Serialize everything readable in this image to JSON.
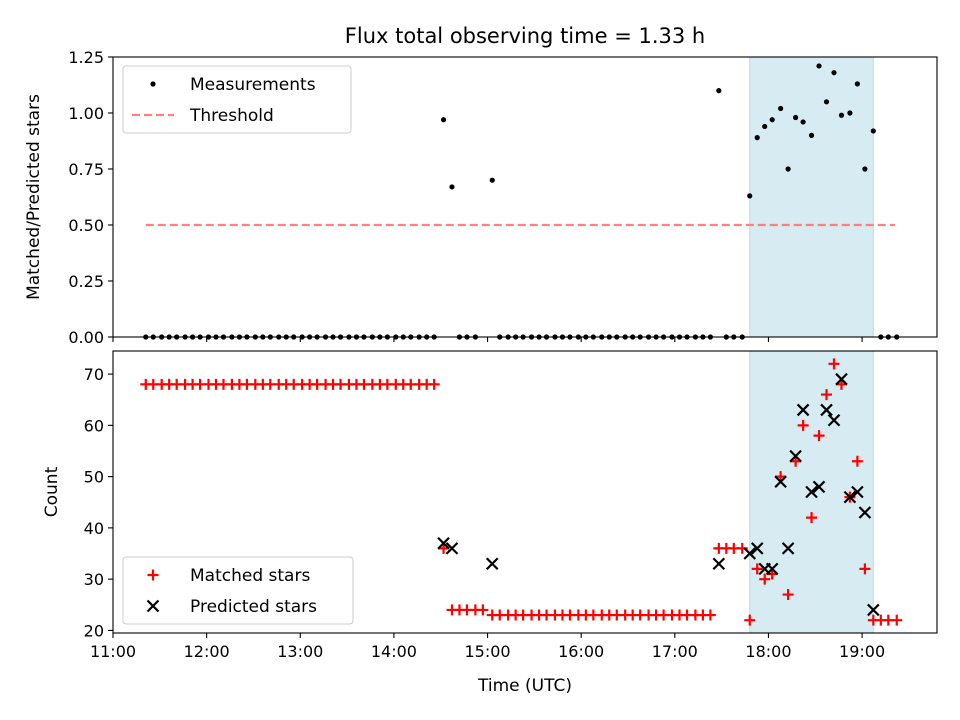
{
  "figure": {
    "title": "Flux total observing time = 1.33 h"
  },
  "chart_data": [
    {
      "type": "scatter",
      "name": "ratio-panel",
      "ylabel": "Matched/Predicted stars",
      "xlabel": "",
      "xlim": [
        11.0,
        19.8
      ],
      "ylim": [
        0.0,
        1.25
      ],
      "x_ticks": [
        11,
        12,
        13,
        14,
        15,
        16,
        17,
        18,
        19
      ],
      "x_tick_labels": [
        "",
        "",
        "",
        "",
        "",
        "",
        "",
        "",
        ""
      ],
      "y_ticks": [
        0.0,
        0.25,
        0.5,
        0.75,
        1.0,
        1.25
      ],
      "y_tick_labels": [
        "0.00",
        "0.25",
        "0.50",
        "0.75",
        "1.00",
        "1.25"
      ],
      "shaded_span": [
        17.8,
        19.12
      ],
      "shade_color": "#add8e6",
      "legend": {
        "position": "upper-left",
        "entries": [
          {
            "label": "Measurements",
            "marker": "dot",
            "color": "#000000"
          },
          {
            "label": "Threshold",
            "marker": "dashed-line",
            "color": "#ff7f7f"
          }
        ]
      },
      "threshold": {
        "value": 0.5,
        "x_range": [
          11.35,
          19.35
        ],
        "color": "#ff7f7f"
      },
      "series": [
        {
          "name": "Measurements",
          "color": "#000000",
          "points": [
            [
              11.35,
              0
            ],
            [
              11.43,
              0
            ],
            [
              11.52,
              0
            ],
            [
              11.6,
              0
            ],
            [
              11.68,
              0
            ],
            [
              11.77,
              0
            ],
            [
              11.85,
              0
            ],
            [
              11.93,
              0
            ],
            [
              12.02,
              0
            ],
            [
              12.1,
              0
            ],
            [
              12.18,
              0
            ],
            [
              12.27,
              0
            ],
            [
              12.35,
              0
            ],
            [
              12.43,
              0
            ],
            [
              12.52,
              0
            ],
            [
              12.6,
              0
            ],
            [
              12.68,
              0
            ],
            [
              12.77,
              0
            ],
            [
              12.85,
              0
            ],
            [
              12.93,
              0
            ],
            [
              13.02,
              0
            ],
            [
              13.1,
              0
            ],
            [
              13.18,
              0
            ],
            [
              13.27,
              0
            ],
            [
              13.35,
              0
            ],
            [
              13.43,
              0
            ],
            [
              13.52,
              0
            ],
            [
              13.6,
              0
            ],
            [
              13.68,
              0
            ],
            [
              13.77,
              0
            ],
            [
              13.85,
              0
            ],
            [
              13.93,
              0
            ],
            [
              14.02,
              0
            ],
            [
              14.1,
              0
            ],
            [
              14.18,
              0
            ],
            [
              14.27,
              0
            ],
            [
              14.35,
              0
            ],
            [
              14.43,
              0
            ],
            [
              14.53,
              0.97
            ],
            [
              14.62,
              0.67
            ],
            [
              14.7,
              0
            ],
            [
              14.78,
              0
            ],
            [
              14.87,
              0
            ],
            [
              15.05,
              0.7
            ],
            [
              15.13,
              0
            ],
            [
              15.22,
              0
            ],
            [
              15.3,
              0
            ],
            [
              15.38,
              0
            ],
            [
              15.47,
              0
            ],
            [
              15.55,
              0
            ],
            [
              15.63,
              0
            ],
            [
              15.72,
              0
            ],
            [
              15.8,
              0
            ],
            [
              15.88,
              0
            ],
            [
              15.97,
              0
            ],
            [
              16.05,
              0
            ],
            [
              16.13,
              0
            ],
            [
              16.22,
              0
            ],
            [
              16.3,
              0
            ],
            [
              16.38,
              0
            ],
            [
              16.47,
              0
            ],
            [
              16.55,
              0
            ],
            [
              16.63,
              0
            ],
            [
              16.72,
              0
            ],
            [
              16.8,
              0
            ],
            [
              16.88,
              0
            ],
            [
              16.97,
              0
            ],
            [
              17.05,
              0
            ],
            [
              17.13,
              0
            ],
            [
              17.22,
              0
            ],
            [
              17.3,
              0
            ],
            [
              17.38,
              0
            ],
            [
              17.47,
              1.1
            ],
            [
              17.55,
              0
            ],
            [
              17.63,
              0
            ],
            [
              17.72,
              0
            ],
            [
              17.8,
              0.63
            ],
            [
              17.88,
              0.89
            ],
            [
              17.96,
              0.94
            ],
            [
              18.04,
              0.97
            ],
            [
              18.13,
              1.02
            ],
            [
              18.21,
              0.75
            ],
            [
              18.29,
              0.98
            ],
            [
              18.37,
              0.96
            ],
            [
              18.46,
              0.9
            ],
            [
              18.54,
              1.21
            ],
            [
              18.62,
              1.05
            ],
            [
              18.7,
              1.18
            ],
            [
              18.78,
              0.99
            ],
            [
              18.87,
              1.0
            ],
            [
              18.95,
              1.13
            ],
            [
              19.03,
              0.75
            ],
            [
              19.12,
              0.92
            ],
            [
              19.2,
              0
            ],
            [
              19.28,
              0
            ],
            [
              19.37,
              0
            ]
          ]
        }
      ]
    },
    {
      "type": "scatter",
      "name": "count-panel",
      "ylabel": "Count",
      "xlabel": "Time (UTC)",
      "xlim": [
        11.0,
        19.8
      ],
      "ylim": [
        19.5,
        74.5
      ],
      "x_ticks": [
        11,
        12,
        13,
        14,
        15,
        16,
        17,
        18,
        19
      ],
      "x_tick_labels": [
        "11:00",
        "12:00",
        "13:00",
        "14:00",
        "15:00",
        "16:00",
        "17:00",
        "18:00",
        "19:00"
      ],
      "y_ticks": [
        20,
        30,
        40,
        50,
        60,
        70
      ],
      "y_tick_labels": [
        "20",
        "30",
        "40",
        "50",
        "60",
        "70"
      ],
      "shaded_span": [
        17.8,
        19.12
      ],
      "shade_color": "#add8e6",
      "legend": {
        "position": "lower-left",
        "entries": [
          {
            "label": "Matched stars",
            "marker": "plus",
            "color": "#ff0000"
          },
          {
            "label": "Predicted stars",
            "marker": "x",
            "color": "#000000"
          }
        ]
      },
      "series": [
        {
          "name": "Matched stars",
          "marker": "plus",
          "color": "#ff0000",
          "points": [
            [
              11.35,
              68
            ],
            [
              11.43,
              68
            ],
            [
              11.52,
              68
            ],
            [
              11.6,
              68
            ],
            [
              11.68,
              68
            ],
            [
              11.77,
              68
            ],
            [
              11.85,
              68
            ],
            [
              11.93,
              68
            ],
            [
              12.02,
              68
            ],
            [
              12.1,
              68
            ],
            [
              12.18,
              68
            ],
            [
              12.27,
              68
            ],
            [
              12.35,
              68
            ],
            [
              12.43,
              68
            ],
            [
              12.52,
              68
            ],
            [
              12.6,
              68
            ],
            [
              12.68,
              68
            ],
            [
              12.77,
              68
            ],
            [
              12.85,
              68
            ],
            [
              12.93,
              68
            ],
            [
              13.02,
              68
            ],
            [
              13.1,
              68
            ],
            [
              13.18,
              68
            ],
            [
              13.27,
              68
            ],
            [
              13.35,
              68
            ],
            [
              13.43,
              68
            ],
            [
              13.52,
              68
            ],
            [
              13.6,
              68
            ],
            [
              13.68,
              68
            ],
            [
              13.77,
              68
            ],
            [
              13.85,
              68
            ],
            [
              13.93,
              68
            ],
            [
              14.02,
              68
            ],
            [
              14.1,
              68
            ],
            [
              14.18,
              68
            ],
            [
              14.27,
              68
            ],
            [
              14.35,
              68
            ],
            [
              14.43,
              68
            ],
            [
              14.53,
              36
            ],
            [
              14.62,
              24
            ],
            [
              14.7,
              24
            ],
            [
              14.78,
              24
            ],
            [
              14.87,
              24
            ],
            [
              14.95,
              24
            ],
            [
              15.05,
              23
            ],
            [
              15.13,
              23
            ],
            [
              15.22,
              23
            ],
            [
              15.3,
              23
            ],
            [
              15.38,
              23
            ],
            [
              15.47,
              23
            ],
            [
              15.55,
              23
            ],
            [
              15.63,
              23
            ],
            [
              15.72,
              23
            ],
            [
              15.8,
              23
            ],
            [
              15.88,
              23
            ],
            [
              15.97,
              23
            ],
            [
              16.05,
              23
            ],
            [
              16.13,
              23
            ],
            [
              16.22,
              23
            ],
            [
              16.3,
              23
            ],
            [
              16.38,
              23
            ],
            [
              16.47,
              23
            ],
            [
              16.55,
              23
            ],
            [
              16.63,
              23
            ],
            [
              16.72,
              23
            ],
            [
              16.8,
              23
            ],
            [
              16.88,
              23
            ],
            [
              16.97,
              23
            ],
            [
              17.05,
              23
            ],
            [
              17.13,
              23
            ],
            [
              17.22,
              23
            ],
            [
              17.3,
              23
            ],
            [
              17.38,
              23
            ],
            [
              17.47,
              36
            ],
            [
              17.55,
              36
            ],
            [
              17.63,
              36
            ],
            [
              17.72,
              36
            ],
            [
              17.8,
              22
            ],
            [
              17.88,
              32
            ],
            [
              17.96,
              30
            ],
            [
              18.04,
              31
            ],
            [
              18.13,
              50
            ],
            [
              18.21,
              27
            ],
            [
              18.29,
              53
            ],
            [
              18.37,
              60
            ],
            [
              18.46,
              42
            ],
            [
              18.54,
              58
            ],
            [
              18.62,
              66
            ],
            [
              18.7,
              72
            ],
            [
              18.78,
              68
            ],
            [
              18.87,
              46
            ],
            [
              18.95,
              53
            ],
            [
              19.03,
              32
            ],
            [
              19.12,
              22
            ],
            [
              19.2,
              22
            ],
            [
              19.28,
              22
            ],
            [
              19.37,
              22
            ]
          ]
        },
        {
          "name": "Predicted stars",
          "marker": "x",
          "color": "#000000",
          "points": [
            [
              14.53,
              37
            ],
            [
              14.62,
              36
            ],
            [
              15.05,
              33
            ],
            [
              17.47,
              33
            ],
            [
              17.8,
              35
            ],
            [
              17.88,
              36
            ],
            [
              17.96,
              32
            ],
            [
              18.04,
              32
            ],
            [
              18.13,
              49
            ],
            [
              18.21,
              36
            ],
            [
              18.29,
              54
            ],
            [
              18.37,
              63
            ],
            [
              18.46,
              47
            ],
            [
              18.54,
              48
            ],
            [
              18.62,
              63
            ],
            [
              18.7,
              61
            ],
            [
              18.78,
              69
            ],
            [
              18.87,
              46
            ],
            [
              18.95,
              47
            ],
            [
              19.03,
              43
            ],
            [
              19.12,
              24
            ]
          ]
        }
      ]
    }
  ]
}
